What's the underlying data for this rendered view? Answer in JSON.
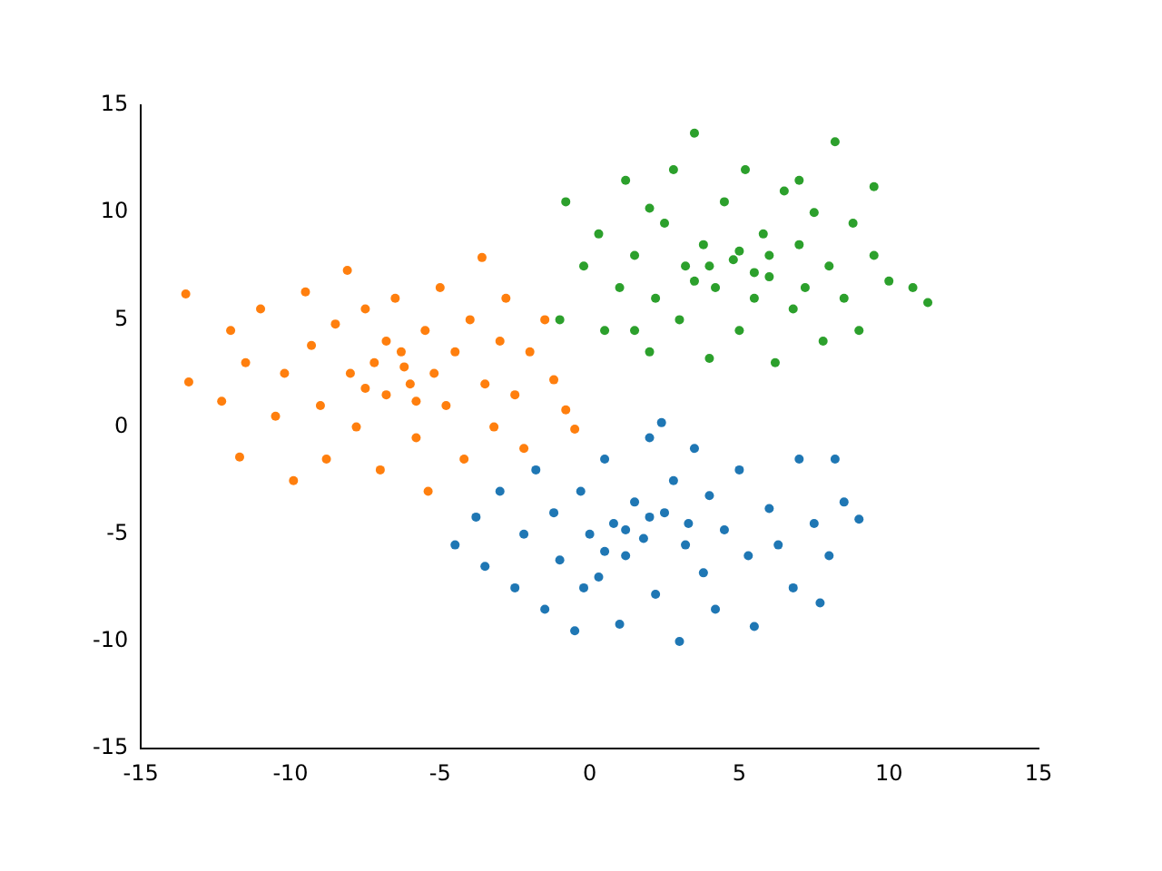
{
  "chart_data": {
    "type": "scatter",
    "xlim": [
      -15,
      15
    ],
    "ylim": [
      -15,
      15
    ],
    "xticks": [
      -15,
      -10,
      -5,
      0,
      5,
      10,
      15
    ],
    "yticks": [
      -15,
      -10,
      -5,
      0,
      5,
      10,
      15
    ],
    "marker": "circle",
    "grid": false,
    "legend": false,
    "series": [
      {
        "color": "#1f77b4",
        "x": [
          -4.5,
          -3.8,
          -3.5,
          -3,
          -2.5,
          -2.2,
          -1.8,
          -1.5,
          -1.2,
          -1,
          -0.5,
          -0.3,
          0,
          0.3,
          0.5,
          0.8,
          1,
          1.2,
          1.5,
          1.8,
          2,
          2.2,
          2.5,
          2.8,
          3,
          3.2,
          3.5,
          3.8,
          4,
          4.2,
          4.5,
          5,
          5.3,
          5.5,
          6,
          6.3,
          6.8,
          7,
          7.5,
          8,
          8.5,
          9,
          8.2,
          7.7,
          1.2,
          2,
          0.5,
          3.3,
          2.4,
          -0.2
        ],
        "values": [
          -5.5,
          -4.2,
          -6.5,
          -3,
          -7.5,
          -5,
          -2,
          -8.5,
          -4,
          -6.2,
          -9.5,
          -3,
          -5,
          -7,
          -1.5,
          -4.5,
          -9.2,
          -6,
          -3.5,
          -5.2,
          -0.5,
          -7.8,
          -4,
          -2.5,
          -10,
          -5.5,
          -1,
          -6.8,
          -3.2,
          -8.5,
          -4.8,
          -2,
          -6,
          -9.3,
          -3.8,
          -5.5,
          -7.5,
          -1.5,
          -4.5,
          -6,
          -3.5,
          -4.3,
          -1.5,
          -8.2,
          -4.8,
          -4.2,
          -5.8,
          -4.5,
          0.2,
          -7.5
        ]
      },
      {
        "color": "#ff7f0e",
        "x": [
          -13.5,
          -13.4,
          -12.3,
          -11.7,
          -12,
          -11.5,
          -11,
          -10.5,
          -10.2,
          -9.9,
          -9.5,
          -9.3,
          -9,
          -8.8,
          -8.5,
          -8.1,
          -8,
          -7.8,
          -7.5,
          -7.2,
          -7,
          -6.8,
          -6.5,
          -6.3,
          -6,
          -5.8,
          -5.5,
          -5.4,
          -5.2,
          -5,
          -4.8,
          -4.5,
          -4.2,
          -4,
          -3.6,
          -3.5,
          -3.2,
          -3,
          -2.8,
          -2.5,
          -2.2,
          -2,
          -1.5,
          -1.2,
          -0.8,
          -0.5,
          -6.8,
          -7.5,
          -5.8,
          -6.2
        ],
        "values": [
          6.2,
          2.1,
          1.2,
          -1.4,
          4.5,
          3,
          5.5,
          0.5,
          2.5,
          -2.5,
          6.3,
          3.8,
          1,
          -1.5,
          4.8,
          7.3,
          2.5,
          0,
          5.5,
          3,
          -2,
          1.5,
          6,
          3.5,
          2,
          -0.5,
          4.5,
          -3,
          2.5,
          6.5,
          1,
          3.5,
          -1.5,
          5,
          7.9,
          2,
          0,
          4,
          6,
          1.5,
          -1,
          3.5,
          5,
          2.2,
          0.8,
          -0.1,
          4,
          1.8,
          1.2,
          2.8
        ]
      },
      {
        "color": "#2ca02c",
        "x": [
          -1,
          -0.8,
          -0.2,
          0.3,
          0.5,
          1,
          1.2,
          1.5,
          2,
          2.2,
          2.5,
          2.8,
          3,
          3.2,
          3.5,
          3.8,
          4,
          4.2,
          4.5,
          4.8,
          5,
          5.2,
          5.5,
          5.8,
          6,
          6.2,
          6.5,
          6.8,
          7,
          7.2,
          7.5,
          7.8,
          8,
          8.2,
          8.5,
          8.8,
          9,
          9.5,
          9.5,
          10,
          10.8,
          11.3,
          4,
          5,
          6,
          3.5,
          5.5,
          2,
          7,
          1.5
        ],
        "values": [
          5,
          10.5,
          7.5,
          9,
          4.5,
          6.5,
          11.5,
          8,
          3.5,
          6,
          9.5,
          12,
          5,
          7.5,
          13.7,
          8.5,
          3.2,
          6.5,
          10.5,
          7.8,
          4.5,
          12,
          6,
          9,
          7,
          3,
          11,
          5.5,
          8.5,
          6.5,
          10,
          4,
          7.5,
          13.3,
          6,
          9.5,
          4.5,
          8,
          11.2,
          6.8,
          6.5,
          5.8,
          7.5,
          8.2,
          8,
          6.8,
          7.2,
          10.2,
          11.5,
          4.5
        ]
      }
    ]
  }
}
